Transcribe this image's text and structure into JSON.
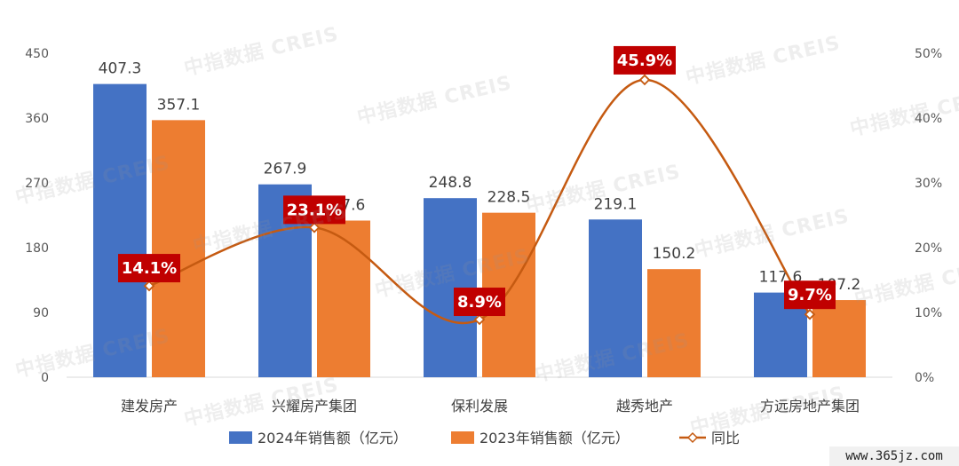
{
  "watermark": "中指数据 CREIS",
  "site": "www.365jz.com",
  "colors": {
    "bar2024": "#4472C4",
    "bar2023": "#ED7D31",
    "line": "#C55A11",
    "badge": "#C00000",
    "axis_text": "#595959"
  },
  "chart_data": {
    "type": "bar",
    "categories": [
      "建发房产",
      "兴耀房产集团",
      "保利发展",
      "越秀地产",
      "方远房地产集团"
    ],
    "series": [
      {
        "name": "2024年销售额（亿元）",
        "type": "bar",
        "axis": "left",
        "values": [
          407.3,
          267.9,
          248.8,
          219.1,
          117.6
        ],
        "labels": [
          "407.3",
          "267.9",
          "248.8",
          "219.1",
          "117.6"
        ]
      },
      {
        "name": "2023年销售额（亿元）",
        "type": "bar",
        "axis": "left",
        "values": [
          357.1,
          217.6,
          228.5,
          150.2,
          107.2
        ],
        "labels": [
          "357.1",
          "217.6",
          "228.5",
          "150.2",
          "107.2"
        ]
      },
      {
        "name": "同比",
        "type": "line",
        "axis": "right",
        "values": [
          14.1,
          23.1,
          8.9,
          45.9,
          9.7
        ],
        "labels": [
          "14.1%",
          "23.1%",
          "8.9%",
          "45.9%",
          "9.7%"
        ]
      }
    ],
    "y_left": {
      "min": 0,
      "max": 450,
      "ticks": [
        "0",
        "90",
        "180",
        "270",
        "360",
        "450"
      ]
    },
    "y_right": {
      "min": 0,
      "max": 50,
      "ticks": [
        "0%",
        "10%",
        "20%",
        "30%",
        "40%",
        "50%"
      ]
    },
    "legend_position": "bottom",
    "grid": false
  }
}
